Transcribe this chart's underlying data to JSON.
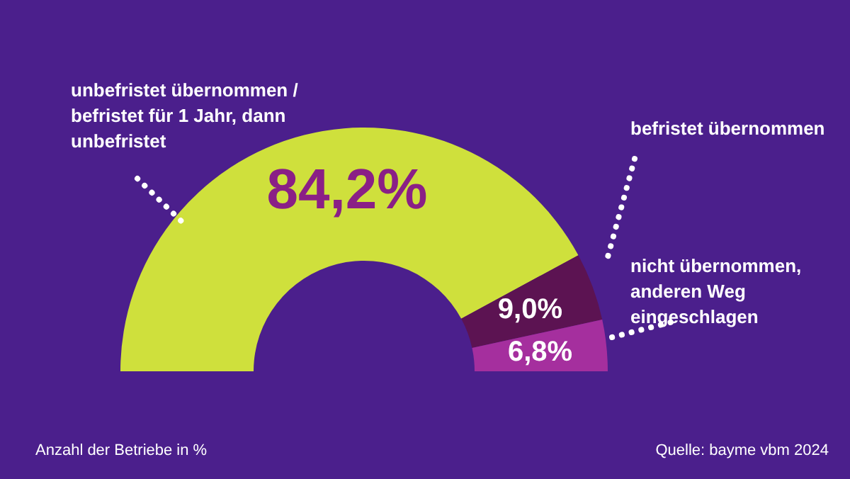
{
  "chart_data": {
    "type": "donut",
    "categories": [
      "unbefristet übernommen / befristet für 1 Jahr, dann unbefristet",
      "befristet übernommen",
      "nicht übernommen, anderen Weg eingeschlagen"
    ],
    "values": [
      84.2,
      9.0,
      6.8
    ],
    "colors": [
      "#cfe03c",
      "#5c1352",
      "#a52f9e"
    ],
    "value_labels": [
      "84,2%",
      "9,0%",
      "6,8%"
    ],
    "annotations": [
      "Anzahl der Betriebe in %",
      "Quelle: bayme vbm 2024"
    ]
  }
}
